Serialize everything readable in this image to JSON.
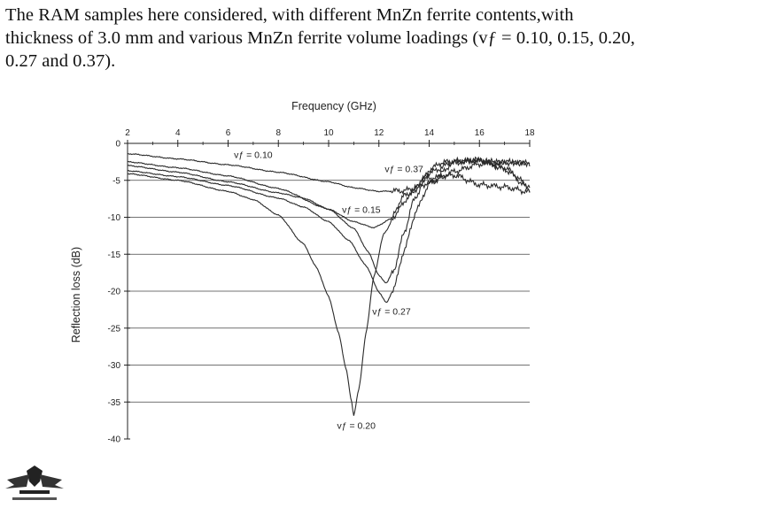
{
  "caption": {
    "lines": [
      "The RAM samples here considered, with different MnZn ferrite contents,with",
      "thickness of 3.0 mm and various MnZn ferrite volume loadings (vƒ = 0.10, 0.15, 0.20,",
      "0.27 and  0.37)."
    ]
  },
  "chart_data": {
    "type": "line",
    "xlabel": "Frequency (GHz)",
    "ylabel": "Reflection loss (dB)",
    "x_axis_position": "top",
    "xlim": [
      2,
      18
    ],
    "ylim": [
      -40,
      0
    ],
    "x_ticks": [
      2,
      4,
      6,
      8,
      10,
      12,
      14,
      16,
      18
    ],
    "y_ticks": [
      0,
      -5,
      -10,
      -15,
      -20,
      -25,
      -30,
      -35,
      -40
    ],
    "grid": "horizontal",
    "series": [
      {
        "name": "vƒ = 0.10",
        "x": [
          2,
          4,
          6,
          8,
          10,
          11,
          12,
          13,
          14,
          15,
          16,
          17,
          18
        ],
        "y": [
          -1.4,
          -2.1,
          -2.9,
          -3.9,
          -5.2,
          -6.0,
          -6.5,
          -6.4,
          -5.4,
          -3.8,
          -2.8,
          -2.5,
          -2.7
        ]
      },
      {
        "name": "vƒ = 0.15",
        "x": [
          2,
          4,
          6,
          8,
          10,
          11,
          11.8,
          12.5,
          13.2,
          14,
          15,
          16,
          17,
          18
        ],
        "y": [
          -2.5,
          -3.3,
          -4.4,
          -6.1,
          -8.9,
          -10.6,
          -11.4,
          -10.2,
          -7.2,
          -4.0,
          -2.5,
          -2.3,
          -3.5,
          -6.2
        ]
      },
      {
        "name": "vƒ = 0.20",
        "x": [
          2,
          4,
          6,
          7,
          8,
          9,
          9.5,
          10,
          10.4,
          10.7,
          10.9,
          11.0,
          11.2,
          11.5,
          11.8,
          12.2,
          13,
          14,
          15,
          16,
          17,
          18
        ],
        "y": [
          -4.1,
          -5.0,
          -6.5,
          -7.6,
          -9.7,
          -13.6,
          -16.7,
          -20.7,
          -25.7,
          -30.6,
          -34.7,
          -36.8,
          -33.3,
          -25.4,
          -18.0,
          -12.2,
          -7.1,
          -4.7,
          -4.3,
          -5.6,
          -5.9,
          -6.6
        ]
      },
      {
        "name": "vƒ = 0.27",
        "x": [
          2,
          4,
          6,
          8,
          9,
          10,
          10.8,
          11.5,
          12,
          12.3,
          12.6,
          13,
          13.5,
          14,
          15,
          16,
          17,
          18
        ],
        "y": [
          -3.7,
          -4.5,
          -5.7,
          -7.4,
          -8.6,
          -10.6,
          -13.1,
          -16.6,
          -20.1,
          -21.6,
          -19.6,
          -14.5,
          -9.0,
          -5.5,
          -2.6,
          -2.2,
          -3.3,
          -5.8
        ]
      },
      {
        "name": "vƒ = 0.37",
        "x": [
          2,
          4,
          6,
          8,
          9,
          10,
          11,
          11.6,
          12,
          12.3,
          12.6,
          13,
          13.4,
          14,
          14.5,
          15,
          16,
          17,
          18
        ],
        "y": [
          -3.0,
          -3.9,
          -5.2,
          -6.7,
          -7.4,
          -8.9,
          -11.5,
          -14.8,
          -17.9,
          -18.9,
          -17.1,
          -12.1,
          -7.6,
          -3.6,
          -2.6,
          -2.4,
          -2.4,
          -2.6,
          -2.7
        ]
      }
    ],
    "annotations": [
      {
        "text": "vƒ = 0.10",
        "series": "vƒ = 0.10",
        "x": 7.0,
        "y": -2.0
      },
      {
        "text": "vƒ = 0.37",
        "series": "vƒ = 0.37",
        "x": 13.0,
        "y": -3.9
      },
      {
        "text": "vƒ = 0.15",
        "series": "vƒ = 0.15",
        "x": 11.3,
        "y": -9.4
      },
      {
        "text": "vƒ = 0.27",
        "series": "vƒ = 0.27",
        "x": 12.5,
        "y": -23.2
      },
      {
        "text": "vƒ = 0.20",
        "series": "vƒ = 0.20",
        "x": 11.1,
        "y": -38.6
      }
    ]
  },
  "icons": {
    "logo": "winged-emblem-icon"
  },
  "colors": {
    "curve": "#2a2a2a",
    "grid": "#444444",
    "text": "#111111"
  }
}
